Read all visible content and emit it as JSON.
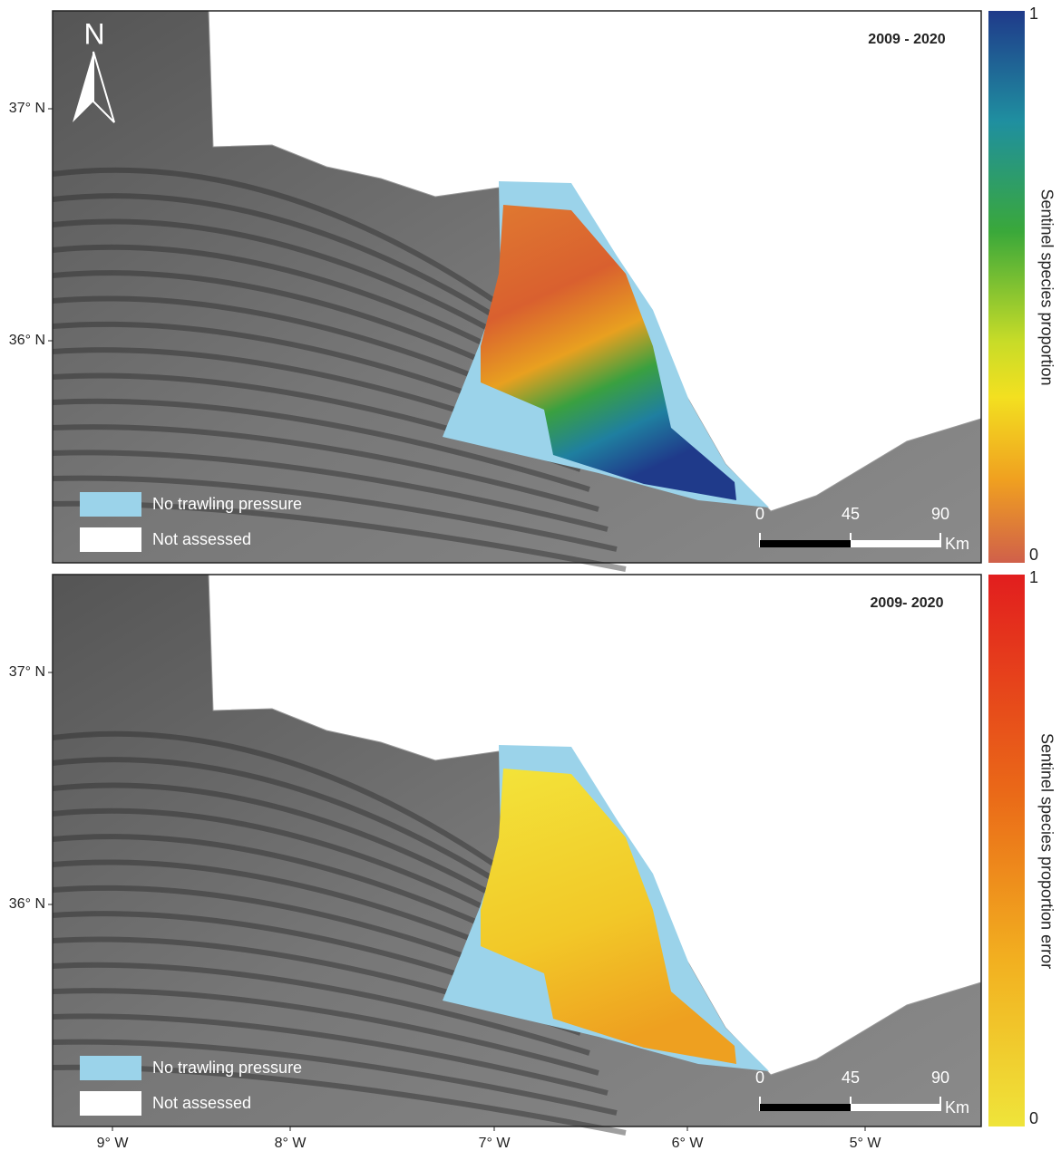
{
  "panels": [
    {
      "title": "2009 - 2020",
      "north": "N",
      "lat_labels": [
        "37° N",
        "36° N"
      ],
      "legend": [
        "No trawling pressure",
        "Not assessed"
      ],
      "scale_labels": [
        "0",
        "45",
        "90"
      ],
      "scale_unit": "Km",
      "colorbar": {
        "label": "Sentinel species proportion",
        "max": "1",
        "min": "0"
      }
    },
    {
      "title": "2009- 2020",
      "lat_labels": [
        "37° N",
        "36° N"
      ],
      "legend": [
        "No trawling pressure",
        "Not assessed"
      ],
      "scale_labels": [
        "0",
        "45",
        "90"
      ],
      "scale_unit": "Km",
      "colorbar": {
        "label": "Sentinel species proportion error",
        "max": "1",
        "min": "0"
      }
    }
  ],
  "lon_labels": [
    "9° W",
    "8° W",
    "7° W",
    "6° W",
    "5° W"
  ]
}
